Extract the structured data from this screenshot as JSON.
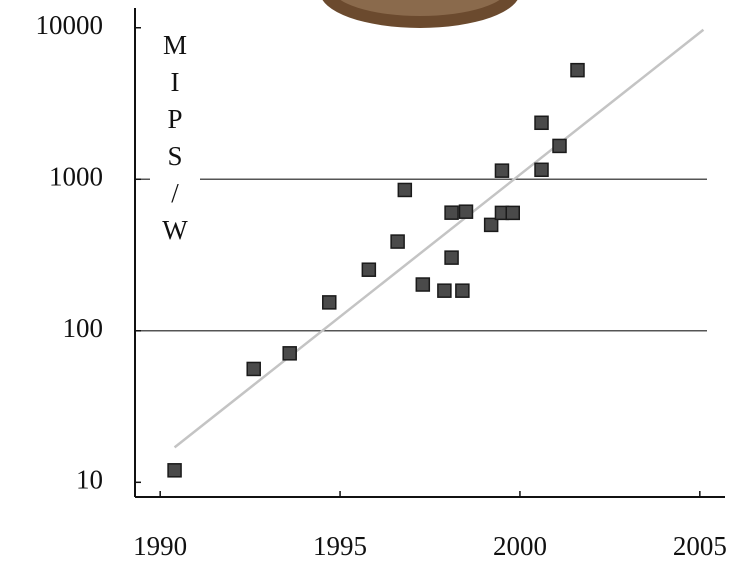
{
  "chart_data": {
    "type": "scatter",
    "y_label": "MIPS/W",
    "x": [
      1990.4,
      1992.6,
      1993.6,
      1994.7,
      1995.8,
      1996.6,
      1996.8,
      1997.3,
      1997.9,
      1998.1,
      1998.1,
      1998.4,
      1998.5,
      1999.2,
      1999.5,
      1999.5,
      1999.8,
      2000.6,
      2000.6,
      2001.1,
      2001.6
    ],
    "values": [
      12,
      56,
      71,
      154,
      253,
      388,
      850,
      202,
      184,
      304,
      602,
      184,
      611,
      500,
      1140,
      600,
      600,
      2360,
      1155,
      1660,
      5250
    ],
    "color": "#4a4a4a",
    "trend": {
      "x": [
        1990.4,
        2005.1
      ],
      "values": [
        17,
        9700
      ],
      "color": "#c4c4c4"
    },
    "xlim": [
      1989.3,
      2005.7
    ],
    "xticks": [
      1990,
      1995,
      2000,
      2005
    ],
    "ylim": [
      8,
      13500
    ],
    "yticks": [
      10,
      100,
      1000,
      10000
    ],
    "log_y": true,
    "grid": true
  }
}
